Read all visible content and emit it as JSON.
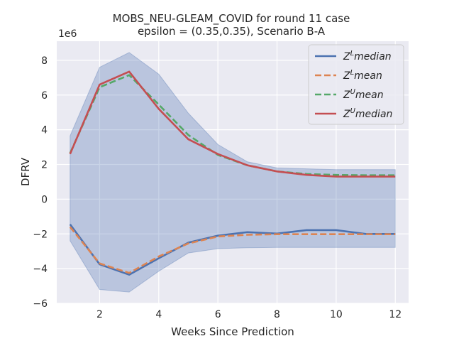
{
  "chart_data": {
    "type": "line",
    "title": "MOBS_NEU-GLEAM_COVID for round 11 case",
    "subtitle": "epsilon = (0.35,0.35), Scenario B-A",
    "xlabel": "Weeks Since Prediction",
    "ylabel": "DFRV",
    "y_offset_label": "1e6",
    "xlim": [
      0.55,
      12.45
    ],
    "ylim": [
      -6.0,
      9.1
    ],
    "x_ticks": [
      2,
      4,
      6,
      8,
      10,
      12
    ],
    "y_ticks": [
      -6,
      -4,
      -2,
      0,
      2,
      4,
      6,
      8
    ],
    "grid": true,
    "legend_position": "top-right",
    "x": [
      1,
      2,
      3,
      4,
      5,
      6,
      7,
      8,
      9,
      10,
      11,
      12
    ],
    "band": {
      "upper": [
        3.65,
        7.6,
        8.45,
        7.2,
        4.95,
        3.15,
        2.15,
        1.8,
        1.75,
        1.7,
        1.7,
        1.7
      ],
      "lower": [
        -2.4,
        -5.2,
        -5.35,
        -4.15,
        -3.1,
        -2.85,
        -2.8,
        -2.78,
        -2.78,
        -2.78,
        -2.78,
        -2.78
      ],
      "color": "#4c72b0"
    },
    "series": [
      {
        "name": "Z^L median",
        "legend_base": "Z",
        "legend_sup": "L",
        "legend_suffix": "median",
        "color": "#4c72b0",
        "dash": "solid",
        "values": [
          -1.45,
          -3.75,
          -4.35,
          -3.4,
          -2.5,
          -2.1,
          -1.9,
          -1.98,
          -1.78,
          -1.78,
          -2.0,
          -2.0
        ]
      },
      {
        "name": "Z^L mean",
        "legend_base": "Z",
        "legend_sup": "L",
        "legend_suffix": "mean",
        "color": "#dd8452",
        "dash": "dashed",
        "values": [
          -1.6,
          -3.7,
          -4.25,
          -3.3,
          -2.55,
          -2.15,
          -2.05,
          -2.02,
          -2.02,
          -2.02,
          -2.02,
          -2.02
        ]
      },
      {
        "name": "Z^U mean",
        "legend_base": "Z",
        "legend_sup": "U",
        "legend_suffix": "mean",
        "color": "#55a868",
        "dash": "dashed",
        "values": [
          2.65,
          6.45,
          7.15,
          5.45,
          3.7,
          2.55,
          1.95,
          1.6,
          1.45,
          1.4,
          1.38,
          1.38
        ]
      },
      {
        "name": "Z^U median",
        "legend_base": "Z",
        "legend_sup": "U",
        "legend_suffix": "median",
        "color": "#c44e52",
        "dash": "solid",
        "values": [
          2.6,
          6.6,
          7.35,
          5.2,
          3.45,
          2.6,
          1.95,
          1.6,
          1.4,
          1.3,
          1.3,
          1.3
        ]
      }
    ]
  }
}
